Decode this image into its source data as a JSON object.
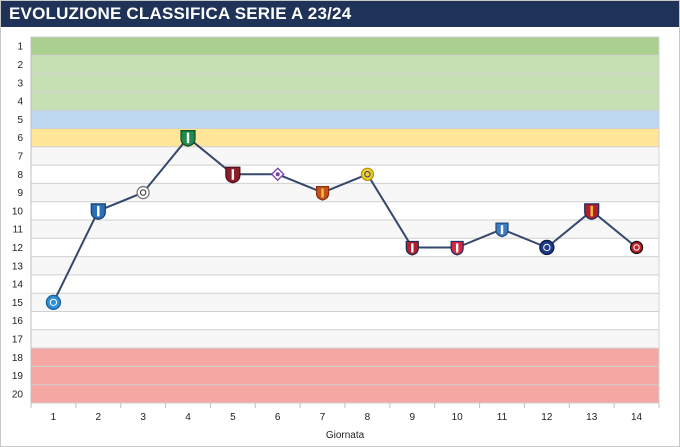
{
  "header": {
    "title": "EVOLUZIONE CLASSIFICA SERIE A 23/24"
  },
  "chart_data": {
    "type": "line",
    "title": "EVOLUZIONE CLASSIFICA SERIE A 23/24",
    "xlabel": "Giornata",
    "ylabel": "",
    "x": [
      1,
      2,
      3,
      4,
      5,
      6,
      7,
      8,
      9,
      10,
      11,
      12,
      13,
      14
    ],
    "y_ticks": [
      1,
      2,
      3,
      4,
      5,
      6,
      7,
      8,
      9,
      10,
      11,
      12,
      13,
      14,
      15,
      16,
      17,
      18,
      19,
      20
    ],
    "ylim": [
      1,
      20
    ],
    "y_inverted": true,
    "grid": true,
    "legend": "none",
    "series": [
      {
        "values": [
          15,
          10,
          9,
          6,
          8,
          8,
          9,
          8,
          12,
          12,
          11,
          12,
          10,
          12
        ],
        "opponents_icons": [
          "napoli-logo",
          "atalanta-logo",
          "udinese-logo",
          "sassuolo-logo",
          "salernitana-logo",
          "fiorentina-logo",
          "roma-logo",
          "frosinone-logo",
          "bologna-logo",
          "cagliari-logo",
          "empoli-logo",
          "inter-logo",
          "genoa-logo",
          "milan-logo"
        ],
        "color": "#34486b"
      }
    ],
    "bands": [
      {
        "from": 1,
        "to": 1,
        "color": "#a9d08e"
      },
      {
        "from": 2,
        "to": 4,
        "color": "#c6e0b4"
      },
      {
        "from": 5,
        "to": 5,
        "color": "#bdd7ee"
      },
      {
        "from": 6,
        "to": 6,
        "color": "#ffe699"
      },
      {
        "from": 18,
        "to": 20,
        "color": "#f4a7a3"
      }
    ]
  }
}
